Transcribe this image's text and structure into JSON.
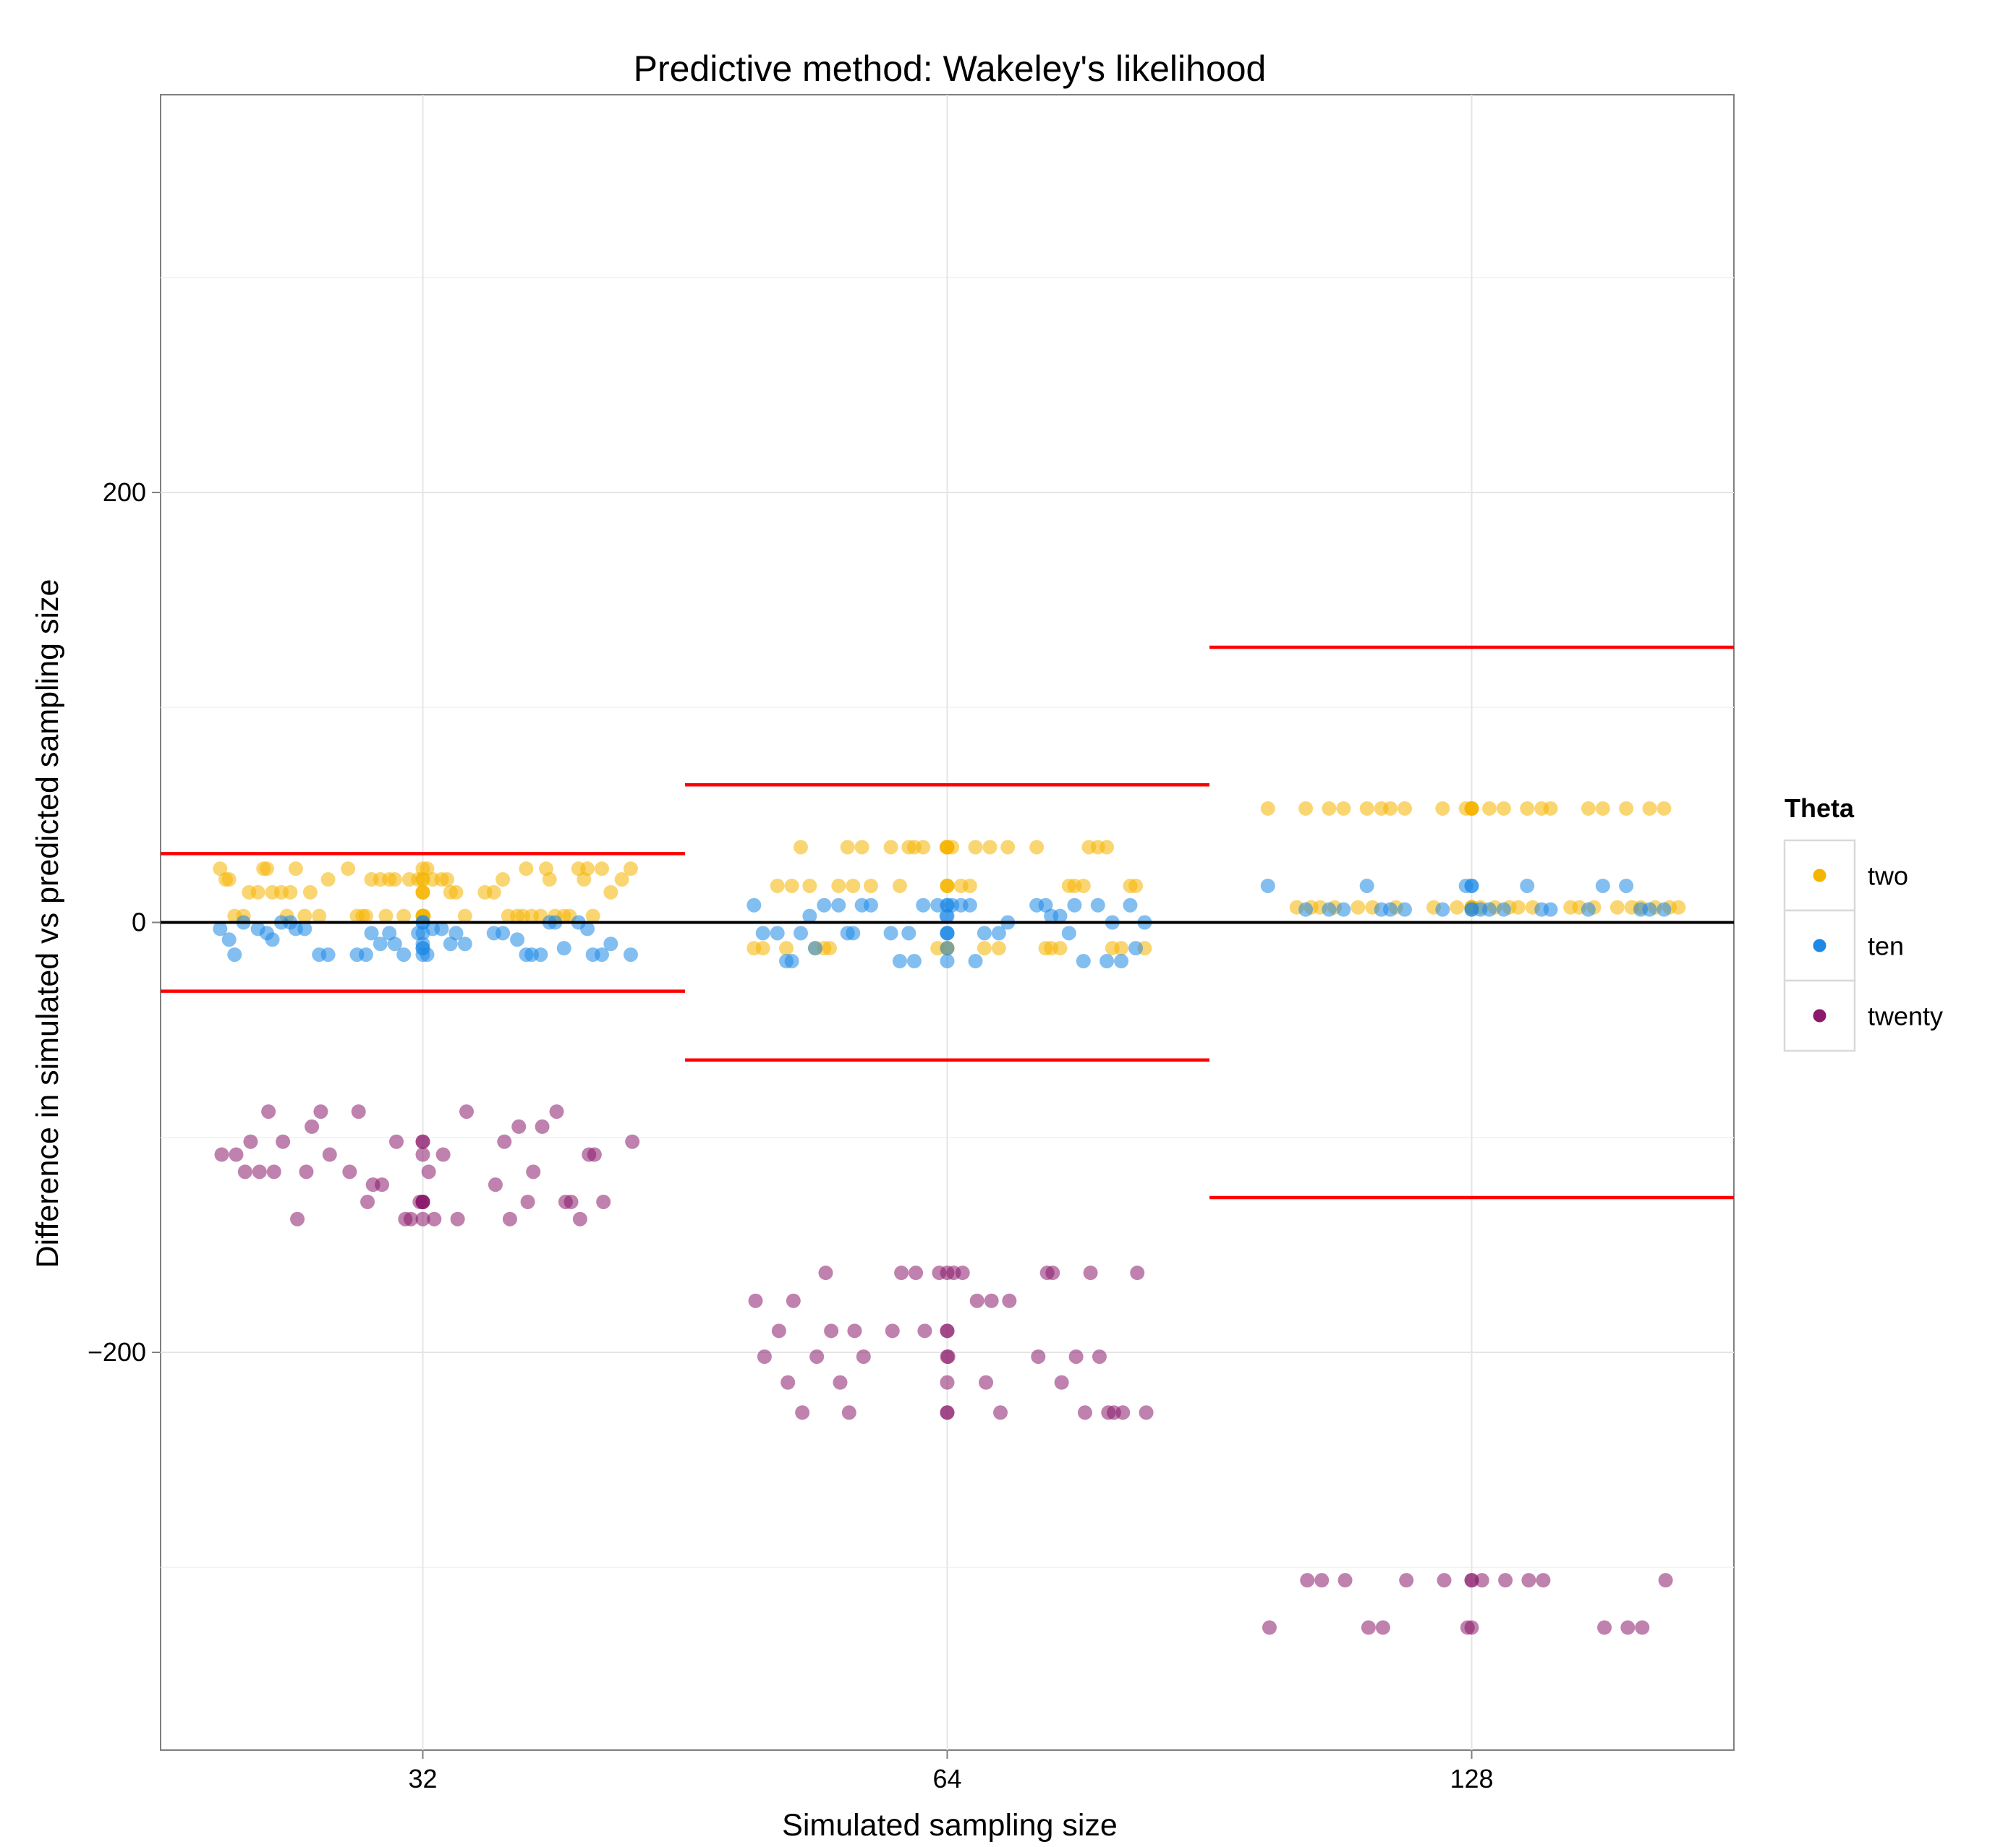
{
  "chart_data": {
    "type": "scatter",
    "title": "Predictive method: Wakeley's likelihood",
    "xlabel": "Simulated sampling size",
    "ylabel": "Difference in simulated vs predicted sampling size",
    "categories": [
      "32",
      "64",
      "128"
    ],
    "ylim": [
      -385,
      385
    ],
    "y_ticks": [
      -200,
      0,
      200
    ],
    "y_tick_labels": [
      "−200",
      "0",
      "200"
    ],
    "grid": true,
    "legend": {
      "title": "Theta",
      "position": "right"
    },
    "reference_line": {
      "y": 0,
      "color": "#000000"
    },
    "colors": {
      "two": "#F5B400",
      "ten": "#1E88E5",
      "twenty": "#8B1A6B",
      "bounds": "#FF0000"
    },
    "bounds": [
      {
        "category": "32",
        "upper": 32,
        "lower": -32
      },
      {
        "category": "64",
        "upper": 64,
        "lower": -64
      },
      {
        "category": "128",
        "upper": 128,
        "lower": -128
      }
    ],
    "series": [
      {
        "name": "two",
        "points": [
          {
            "category": "32",
            "y": [
              14,
              14,
              14,
              14,
              20,
              20,
              20,
              20,
              20,
              25,
              25,
              25,
              25,
              3,
              3,
              3,
              3,
              3,
              3,
              3,
              20,
              14,
              25,
              20,
              14,
              3,
              20,
              25,
              14,
              3,
              25,
              20,
              14,
              3,
              3,
              20,
              14,
              25,
              3,
              20,
              3,
              14,
              25,
              3,
              20,
              14,
              3,
              20,
              25,
              3,
              14,
              3,
              20,
              14,
              3,
              25,
              3,
              20,
              3,
              25,
              3,
              20,
              14,
              3,
              20,
              3,
              25,
              3,
              3,
              20
            ]
          },
          {
            "category": "64",
            "y": [
              17,
              17,
              17,
              17,
              17,
              17,
              35,
              35,
              35,
              35,
              35,
              35,
              -12,
              -12,
              -12,
              -12,
              -12,
              -12,
              17,
              35,
              -12,
              17,
              35,
              -12,
              17,
              35,
              -12,
              17,
              35,
              -12,
              17,
              35,
              -12,
              17,
              35,
              -12,
              17,
              35,
              -12,
              17,
              35,
              -12,
              35,
              17,
              -12,
              35,
              17,
              -12,
              35,
              17,
              35,
              -12,
              35
            ]
          },
          {
            "category": "128",
            "y": [
              53,
              53,
              53,
              53,
              53,
              53,
              53,
              53,
              53,
              53,
              53,
              53,
              53,
              53,
              53,
              53,
              53,
              53,
              53,
              53,
              53,
              53,
              53,
              53,
              7,
              7,
              7,
              7,
              7,
              7,
              7,
              7,
              7,
              7,
              7,
              7,
              7,
              7,
              7,
              7,
              7,
              7,
              7,
              7,
              7,
              7,
              7,
              7,
              7,
              7,
              7,
              7
            ]
          }
        ]
      },
      {
        "name": "ten",
        "points": [
          {
            "category": "32",
            "y": [
              -15,
              -10,
              -10,
              0,
              0,
              -5,
              -8,
              -10,
              -15,
              -3,
              -15,
              -5,
              -15,
              -15,
              0,
              -10,
              -3,
              -12,
              -15,
              0,
              -5,
              -12,
              -15,
              -3,
              0,
              -15,
              -10,
              -3,
              -5,
              -15,
              0,
              -5,
              -3,
              -8,
              -15,
              0,
              -5,
              -3,
              0,
              -10,
              -15,
              -5,
              -12,
              -15,
              -3,
              -8,
              -15,
              -5,
              -15
            ]
          },
          {
            "category": "64",
            "y": [
              -5,
              8,
              8,
              8,
              3,
              -5,
              -5,
              -18,
              0,
              -5,
              -18,
              3,
              -18,
              8,
              -5,
              0,
              -5,
              8,
              -18,
              8,
              -5,
              3,
              8,
              -18,
              8,
              -5,
              3,
              -18,
              8,
              -5,
              8,
              8,
              8,
              -5,
              8,
              -5,
              -12,
              -18,
              -12,
              8,
              -18,
              8,
              8,
              -5,
              0,
              8,
              -18,
              3,
              -5,
              -12
            ]
          },
          {
            "category": "128",
            "y": [
              6,
              6,
              6,
              6,
              6,
              6,
              6,
              17,
              17,
              17,
              17,
              17,
              17,
              6,
              6,
              6,
              6,
              6,
              6,
              17,
              6,
              17,
              6,
              6,
              6,
              6
            ]
          }
        ]
      },
      {
        "name": "twenty",
        "points": [
          {
            "category": "32",
            "y": [
              -102,
              -108,
              -108,
              -116,
              -88,
              -130,
              -130,
              -108,
              -88,
              -116,
              -130,
              -138,
              -116,
              -102,
              -138,
              -130,
              -108,
              -102,
              -95,
              -122,
              -108,
              -130,
              -88,
              -138,
              -130,
              -116,
              -95,
              -88,
              -102,
              -138,
              -138,
              -88,
              -102,
              -108,
              -122,
              -130,
              -108,
              -138,
              -116,
              -116,
              -122,
              -102,
              -130,
              -95,
              -130,
              -138,
              -102,
              -138,
              -116,
              -130
            ]
          },
          {
            "category": "64",
            "y": [
              -190,
              -176,
              -228,
              -228,
              -202,
              -214,
              -163,
              -214,
              -228,
              -214,
              -163,
              -228,
              -190,
              -202,
              -202,
              -202,
              -228,
              -163,
              -228,
              -214,
              -163,
              -190,
              -228,
              -214,
              -202,
              -163,
              -190,
              -202,
              -163,
              -163,
              -176,
              -202,
              -202,
              -163,
              -176,
              -228,
              -190,
              -228,
              -163,
              -176,
              -163,
              -190,
              -228,
              -176,
              -190,
              -163
            ]
          },
          {
            "category": "128",
            "y": [
              -328,
              -328,
              -306,
              -328,
              -328,
              -328,
              -306,
              -306,
              -306,
              -306,
              -306,
              -306,
              -328,
              -306,
              -306,
              -306,
              -328,
              -328,
              -306,
              -306
            ]
          }
        ]
      }
    ]
  }
}
